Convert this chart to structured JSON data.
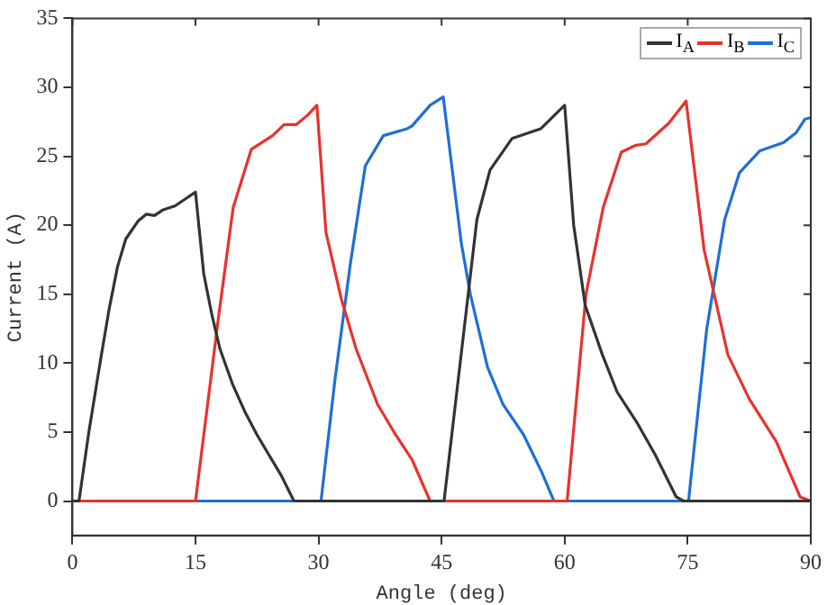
{
  "chart_data": {
    "type": "line",
    "xlabel": "Angle (deg)",
    "ylabel": "Current (A)",
    "xlim": [
      0,
      90
    ],
    "xticks": [
      0,
      15,
      30,
      45,
      60,
      75,
      90
    ],
    "ylim": [
      -2.5,
      35
    ],
    "yticks": [
      0,
      5,
      10,
      15,
      20,
      25,
      30,
      35
    ],
    "grid": false,
    "legend": "top right",
    "series": [
      {
        "name": "I$_{A}$",
        "color": "#333333",
        "x": [
          0,
          0.8,
          2,
          3.5,
          4.5,
          5.5,
          6.5,
          8,
          9,
          10,
          11,
          12.5,
          14,
          15,
          16,
          17,
          18,
          19.5,
          21,
          22.5,
          24,
          25.5,
          27,
          45.3,
          49.3,
          50.9,
          53.6,
          56.1,
          57.1,
          60,
          61.1,
          62.5,
          64.6,
          66.4,
          68.9,
          71,
          73.6,
          74.5,
          90
        ],
        "values": [
          0,
          0,
          5,
          10.5,
          14,
          17,
          19,
          20.3,
          20.8,
          20.7,
          21.1,
          21.4,
          22,
          22.4,
          16.5,
          13.5,
          11,
          8.5,
          6.5,
          4.8,
          3.3,
          1.8,
          0,
          0,
          20.4,
          24,
          26.3,
          26.8,
          27,
          28.7,
          20,
          14.2,
          10.6,
          7.9,
          5.6,
          3.4,
          0.3,
          0,
          0
        ]
      },
      {
        "name": "I$_{B}$",
        "color": "#e8322e",
        "x": [
          0,
          15,
          17.8,
          19.6,
          21.8,
          24.4,
          25.8,
          27.3,
          28.7,
          29.8,
          30.9,
          32.8,
          34.6,
          37.2,
          39.4,
          41.4,
          43.6,
          60.3,
          62.6,
          64.7,
          66.9,
          68.7,
          69.9,
          72.7,
          74.8,
          77,
          79.9,
          82.5,
          85.8,
          88.7,
          90
        ],
        "values": [
          0,
          0,
          13.3,
          21.3,
          25.5,
          26.5,
          27.3,
          27.3,
          28,
          28.7,
          19.5,
          14.6,
          11,
          7,
          4.8,
          3,
          0,
          0,
          15,
          21.3,
          25.3,
          25.8,
          25.9,
          27.4,
          29,
          18.2,
          10.6,
          7.4,
          4.3,
          0.3,
          0
        ]
      },
      {
        "name": "I$_{C}$",
        "color": "#1f6fd6",
        "x": [
          0,
          30.3,
          32,
          33.9,
          35.7,
          37.9,
          40.8,
          41.4,
          43.6,
          45.2,
          46.3,
          47.4,
          48.5,
          50.6,
          52.5,
          55,
          57.2,
          58.7,
          75.1,
          77.3,
          79.5,
          81.3,
          83.8,
          86.7,
          88.2,
          89.3,
          90
        ],
        "values": [
          0,
          0,
          8.8,
          17.3,
          24.3,
          26.5,
          27,
          27.2,
          28.7,
          29.3,
          24,
          18.7,
          15,
          9.7,
          7,
          4.8,
          2.1,
          0,
          0,
          12.4,
          20.4,
          23.8,
          25.4,
          26,
          26.7,
          27.7,
          27.8
        ]
      }
    ]
  }
}
